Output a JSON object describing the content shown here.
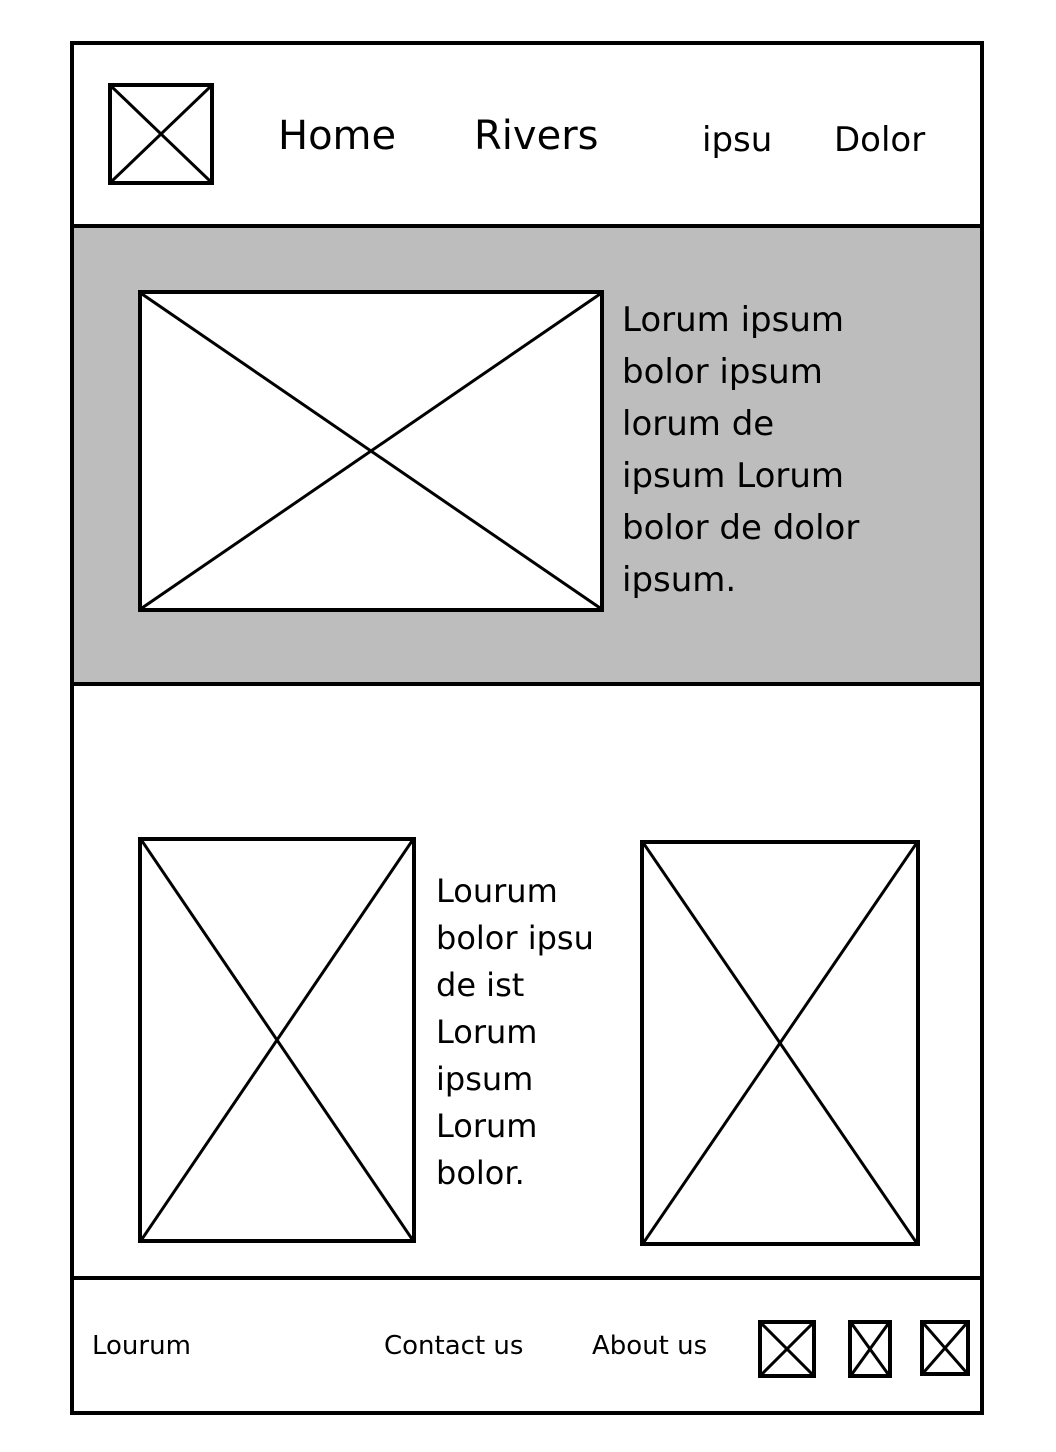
{
  "header": {
    "logo_icon": "image-placeholder-icon",
    "nav": [
      "Home",
      "Rivers",
      "ipsu",
      "Dolor"
    ]
  },
  "hero": {
    "image_icon": "image-placeholder-icon",
    "text": "Lorum ipsum\nbolor ipsum\nlorum de\nipsum Lorum\nbolor de dolor\nipsum."
  },
  "content": {
    "left_image_icon": "image-placeholder-icon",
    "text": "Lourum\nbolor ipsu\nde ist\nLorum\nipsum\nLorum\nbolor.",
    "right_image_icon": "image-placeholder-icon"
  },
  "footer": {
    "brand": "Lourum",
    "links": [
      "Contact us",
      "About us"
    ],
    "social_icons": [
      "image-placeholder-icon",
      "image-placeholder-icon",
      "image-placeholder-icon"
    ]
  }
}
